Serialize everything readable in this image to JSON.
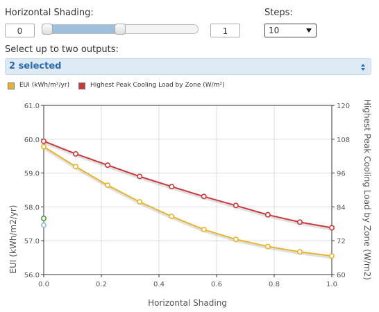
{
  "controls": {
    "shading_label": "Horizontal Shading:",
    "min_value": "0",
    "max_value": "1",
    "slider_range_fraction": [
      0.0,
      0.5
    ],
    "steps_label": "Steps:",
    "steps_value": "10",
    "outputs_label": "Select up to two outputs:",
    "outputs_value": "2 selected"
  },
  "legend": [
    {
      "label": "EUI (kWh/m²/yr)",
      "color": "#e8b429"
    },
    {
      "label": "Highest Peak Cooling Load by Zone (W/m²)",
      "color": "#c9393c"
    }
  ],
  "chart_data": {
    "type": "line",
    "xlabel": "Horizontal Shading",
    "ylabel_left": "EUI (kWh/m2/yr)",
    "ylabel_right": "Highest Peak Cooling Load by Zone (W/m2)",
    "x": [
      0.0,
      0.111,
      0.222,
      0.333,
      0.444,
      0.556,
      0.667,
      0.778,
      0.889,
      1.0
    ],
    "xlim": [
      0.0,
      1.0
    ],
    "x_ticks": [
      "0.0",
      "0.2",
      "0.4",
      "0.6",
      "0.8",
      "1.0"
    ],
    "y_left_lim": [
      56.0,
      61.0
    ],
    "y_left_ticks": [
      "56.0",
      "57.0",
      "58.0",
      "59.0",
      "60.0",
      "61.0"
    ],
    "y_right_lim": [
      60,
      120
    ],
    "y_right_ticks": [
      "60",
      "72",
      "84",
      "96",
      "108",
      "120"
    ],
    "grid": true,
    "series": [
      {
        "name": "EUI (kWh/m²/yr)",
        "axis": "left",
        "color": "#e8b429",
        "values": [
          59.78,
          59.19,
          58.64,
          58.15,
          57.72,
          57.33,
          57.04,
          56.83,
          56.67,
          56.55
        ]
      },
      {
        "name": "Highest Peak Cooling Load by Zone (W/m²)",
        "axis": "right",
        "color": "#c9393c",
        "values": [
          107.3,
          102.8,
          98.8,
          94.8,
          91.2,
          87.7,
          84.5,
          81.2,
          78.6,
          76.6
        ]
      }
    ],
    "markers": [
      {
        "x": 0.0,
        "axis": "left",
        "value": 57.66,
        "color": "#4a9a3c"
      },
      {
        "x": 0.0,
        "axis": "left",
        "value": 57.46,
        "color": "#8fb8dc"
      }
    ]
  }
}
